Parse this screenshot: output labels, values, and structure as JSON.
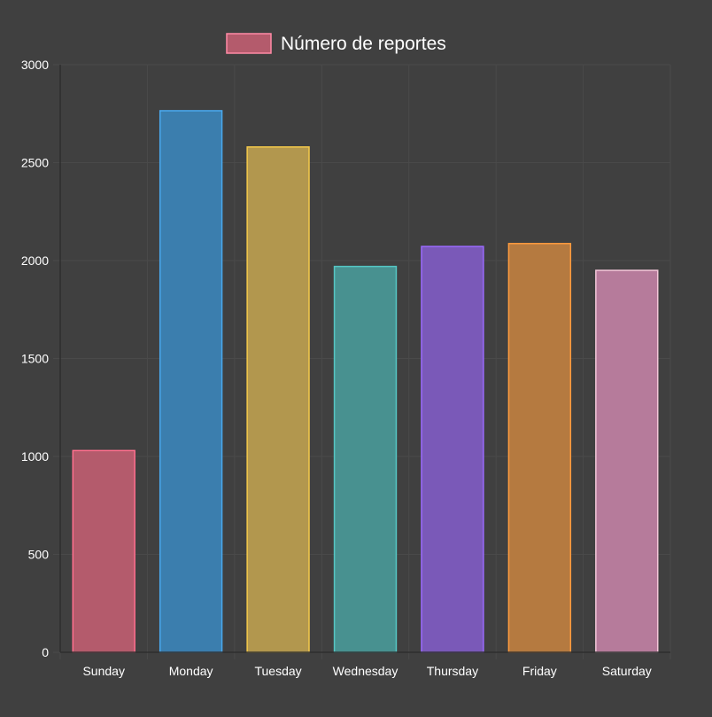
{
  "chart_data": {
    "type": "bar",
    "categories": [
      "Sunday",
      "Monday",
      "Tuesday",
      "Wednesday",
      "Thursday",
      "Friday",
      "Saturday"
    ],
    "series": [
      {
        "name": "Número de reportes",
        "values": [
          1030,
          2765,
          2580,
          1970,
          2072,
          2087,
          1950
        ]
      }
    ],
    "ylim": [
      0,
      3000
    ],
    "yticks": [
      0,
      500,
      1000,
      1500,
      2000,
      2500,
      3000
    ],
    "grid": true,
    "legend_position": "top-center",
    "colors": {
      "background": "#404040",
      "grid": "#4a4a4a",
      "axis": "#2e2e2e",
      "text": "#ffffff",
      "legend_swatch_fill": "#b45b6c",
      "legend_swatch_border": "#ff8aa6",
      "bars": [
        {
          "fill": "#b45b6c",
          "stroke": "#ff6f8e"
        },
        {
          "fill": "#3b7eae",
          "stroke": "#4aa9ef"
        },
        {
          "fill": "#b2974e",
          "stroke": "#f4c94b"
        },
        {
          "fill": "#489190",
          "stroke": "#55c6c4"
        },
        {
          "fill": "#7a59b8",
          "stroke": "#9b6bff"
        },
        {
          "fill": "#b57a40",
          "stroke": "#ff9b3e"
        },
        {
          "fill": "#b67b9b",
          "stroke": "#f4c7d9"
        }
      ]
    }
  }
}
